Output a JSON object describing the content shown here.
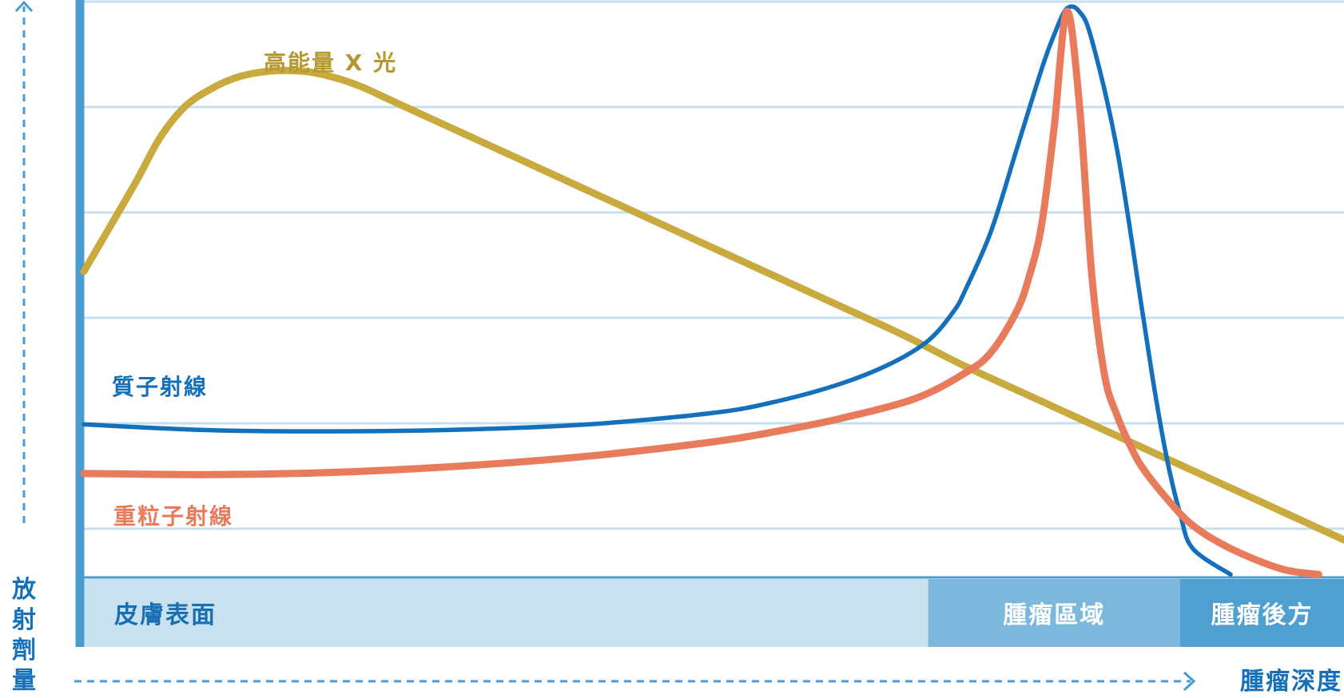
{
  "chart_data": {
    "type": "line",
    "title": "",
    "xlabel": "腫瘤深度",
    "ylabel": "放射劑量",
    "x_unit": "relative depth (0-100)",
    "y_unit": "relative dose (0-100)",
    "xlim": [
      0,
      100
    ],
    "ylim": [
      0,
      100
    ],
    "grid": true,
    "regions": [
      {
        "label": "皮膚表面",
        "start": 0,
        "end": 67,
        "color": "#c8e1ef",
        "text_color": "#1a6fb2"
      },
      {
        "label": "腫瘤區域",
        "start": 67,
        "end": 87,
        "color": "#7bb8dc",
        "text_color": "#ffffff"
      },
      {
        "label": "腫瘤後方",
        "start": 87,
        "end": 100,
        "color": "#4f9fd0",
        "text_color": "#ffffff"
      }
    ],
    "series": [
      {
        "name": "高能量 X 光",
        "color": "#c9aa3e",
        "x": [
          0,
          4,
          6,
          8,
          10,
          12,
          14,
          16,
          18,
          20,
          22,
          24,
          26,
          30,
          35,
          40,
          45,
          50,
          55,
          60,
          65,
          70,
          75,
          80,
          85,
          90,
          95,
          100
        ],
        "y": [
          53,
          68,
          76,
          81.5,
          84.5,
          86.5,
          87.5,
          87.8,
          87.5,
          86.5,
          85,
          83,
          81,
          77,
          72,
          67,
          62,
          57,
          52,
          47,
          42,
          36.5,
          31.5,
          26.5,
          21.5,
          16.5,
          11.5,
          6.5
        ]
      },
      {
        "name": "質子射線",
        "color": "#1570bb",
        "x": [
          0,
          10,
          20,
          30,
          40,
          50,
          55,
          60,
          64,
          67,
          69,
          70,
          72,
          74,
          76,
          77,
          78,
          79,
          80,
          82,
          84,
          85,
          86,
          87,
          88,
          91
        ],
        "y": [
          26.5,
          25.5,
          25.3,
          25.6,
          26.5,
          28.5,
          30.5,
          33.5,
          37,
          41,
          46,
          50,
          60,
          74,
          88,
          94,
          98.5,
          98,
          93,
          74,
          46,
          32,
          20,
          11,
          5,
          0.5
        ]
      },
      {
        "name": "重粒子射線",
        "color": "#e97b5d",
        "x": [
          0,
          10,
          20,
          30,
          40,
          50,
          55,
          60,
          66,
          70,
          72,
          74,
          75,
          76,
          77,
          78,
          79,
          80,
          81,
          82,
          83,
          84,
          86,
          88,
          91,
          95,
          98
        ],
        "y": [
          18,
          17.8,
          18.2,
          19.3,
          21,
          23.5,
          25.3,
          27.5,
          31,
          35.5,
          39,
          46,
          52,
          61,
          78,
          98,
          82,
          52,
          35,
          28,
          23,
          19,
          13.5,
          9,
          5,
          1.5,
          0.5
        ]
      }
    ]
  },
  "labels": {
    "xray": "高能量 X 光",
    "proton": "質子射線",
    "heavy": "重粒子射線",
    "y_axis": [
      "放",
      "射",
      "劑",
      "量"
    ],
    "x_axis": "腫瘤深度"
  }
}
